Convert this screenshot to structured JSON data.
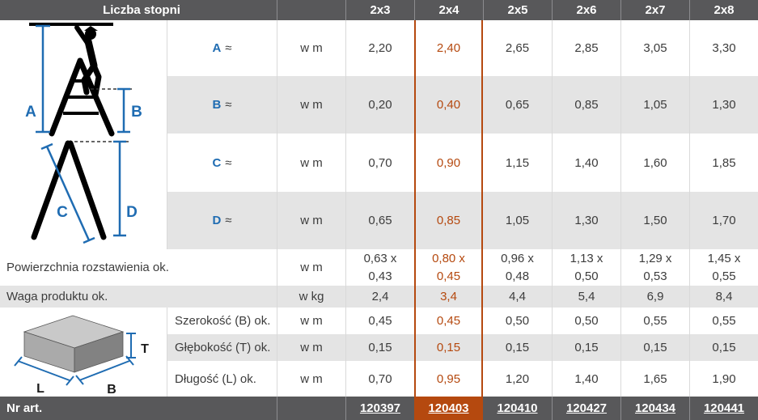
{
  "table": {
    "header": {
      "label": "Liczba stopni",
      "columns": [
        "2x3",
        "2x4",
        "2x5",
        "2x6",
        "2x7",
        "2x8"
      ],
      "highlight_column": "2x4",
      "highlight_index": 1
    },
    "dim_rows": [
      {
        "letter": "A",
        "approx": "≈",
        "unit": "w m",
        "values": [
          "2,20",
          "2,40",
          "2,65",
          "2,85",
          "3,05",
          "3,30"
        ]
      },
      {
        "letter": "B",
        "approx": "≈",
        "unit": "w m",
        "values": [
          "0,20",
          "0,40",
          "0,65",
          "0,85",
          "1,05",
          "1,30"
        ]
      },
      {
        "letter": "C",
        "approx": "≈",
        "unit": "w m",
        "values": [
          "0,70",
          "0,90",
          "1,15",
          "1,40",
          "1,60",
          "1,85"
        ]
      },
      {
        "letter": "D",
        "approx": "≈",
        "unit": "w m",
        "values": [
          "0,65",
          "0,85",
          "1,05",
          "1,30",
          "1,50",
          "1,70"
        ]
      }
    ],
    "full_rows": [
      {
        "label": "Powierzchnia rozstawienia ok.",
        "unit": "w m",
        "values": [
          [
            "0,63 x",
            "0,43"
          ],
          [
            "0,80 x",
            "0,45"
          ],
          [
            "0,96 x",
            "0,48"
          ],
          [
            "1,13 x",
            "0,50"
          ],
          [
            "1,29 x",
            "0,53"
          ],
          [
            "1,45 x",
            "0,55"
          ]
        ]
      },
      {
        "label": "Waga produktu ok.",
        "unit": "w kg",
        "values": [
          "2,4",
          "3,4",
          "4,4",
          "5,4",
          "6,9",
          "8,4"
        ]
      }
    ],
    "package_rows": [
      {
        "label": "Szerokość (B) ok.",
        "unit": "w m",
        "values": [
          "0,45",
          "0,45",
          "0,50",
          "0,50",
          "0,55",
          "0,55"
        ]
      },
      {
        "label": "Głębokość (T) ok.",
        "unit": "w m",
        "values": [
          "0,15",
          "0,15",
          "0,15",
          "0,15",
          "0,15",
          "0,15"
        ]
      },
      {
        "label": "Długość (L) ok.",
        "unit": "w m",
        "values": [
          "0,70",
          "0,95",
          "1,20",
          "1,40",
          "1,65",
          "1,90"
        ]
      }
    ],
    "footer": {
      "label": "Nr art.",
      "values": [
        "120397",
        "120403",
        "120410",
        "120427",
        "120434",
        "120441"
      ]
    }
  },
  "diagrams": {
    "ladder": {
      "name": "ladder-with-dimension-lines",
      "labels": [
        "A",
        "B",
        "C",
        "D"
      ]
    },
    "box": {
      "name": "package-box-with-dimensions",
      "labels": [
        "L",
        "B",
        "T"
      ]
    }
  },
  "colors": {
    "header_bg": "#58585a",
    "zebra_bg": "#e4e4e4",
    "text": "#3c3c3c",
    "accent_orange": "#b5490f",
    "accent_blue": "#1f6cb2",
    "separator": "#d9d9d9"
  }
}
